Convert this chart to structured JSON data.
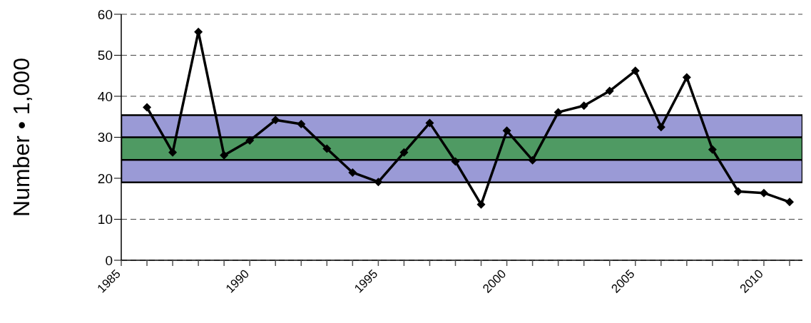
{
  "chart_data": {
    "type": "line",
    "ylabel": "Number • 1,000",
    "x": [
      1986,
      1987,
      1988,
      1989,
      1990,
      1991,
      1992,
      1993,
      1994,
      1995,
      1996,
      1997,
      1998,
      1999,
      2000,
      2001,
      2002,
      2003,
      2004,
      2005,
      2006,
      2007,
      2008,
      2009,
      2010,
      2011
    ],
    "series": [
      {
        "color": "#000000",
        "values": [
          37.3,
          26.3,
          55.7,
          25.6,
          29.2,
          34.2,
          33.2,
          27.2,
          21.4,
          19.1,
          26.3,
          33.5,
          24.1,
          13.6,
          31.6,
          24.4,
          36.1,
          37.7,
          41.3,
          46.2,
          32.5,
          44.6,
          27.0,
          16.8,
          16.4,
          14.2
        ]
      }
    ],
    "xlim": [
      1985,
      2011.5
    ],
    "xticks": [
      1985,
      {
        "value": 1986,
        "label": null
      },
      {
        "value": 1987,
        "label": null
      },
      {
        "value": 1988,
        "label": null
      },
      {
        "value": 1989,
        "label": null
      },
      1990,
      {
        "value": 1991,
        "label": null
      },
      {
        "value": 1992,
        "label": null
      },
      {
        "value": 1993,
        "label": null
      },
      {
        "value": 1994,
        "label": null
      },
      1995,
      {
        "value": 1996,
        "label": null
      },
      {
        "value": 1997,
        "label": null
      },
      {
        "value": 1998,
        "label": null
      },
      {
        "value": 1999,
        "label": null
      },
      2000,
      {
        "value": 2001,
        "label": null
      },
      {
        "value": 2002,
        "label": null
      },
      {
        "value": 2003,
        "label": null
      },
      {
        "value": 2004,
        "label": null
      },
      2005,
      {
        "value": 2006,
        "label": null
      },
      {
        "value": 2007,
        "label": null
      },
      {
        "value": 2008,
        "label": null
      },
      {
        "value": 2009,
        "label": null
      },
      2010,
      {
        "value": 2011,
        "label": null
      }
    ],
    "ylim": [
      0,
      60
    ],
    "yticks": [
      0,
      10,
      20,
      30,
      40,
      50,
      60
    ],
    "bands": [
      {
        "axis": "y",
        "from": 19.0,
        "to": 35.4,
        "color": "#9a9ad6"
      },
      {
        "axis": "y",
        "from": 24.5,
        "to": 30.0,
        "color": "#4f9a63"
      }
    ],
    "grid": "y",
    "legend": false,
    "marker": "diamond",
    "line_style": "solid"
  }
}
